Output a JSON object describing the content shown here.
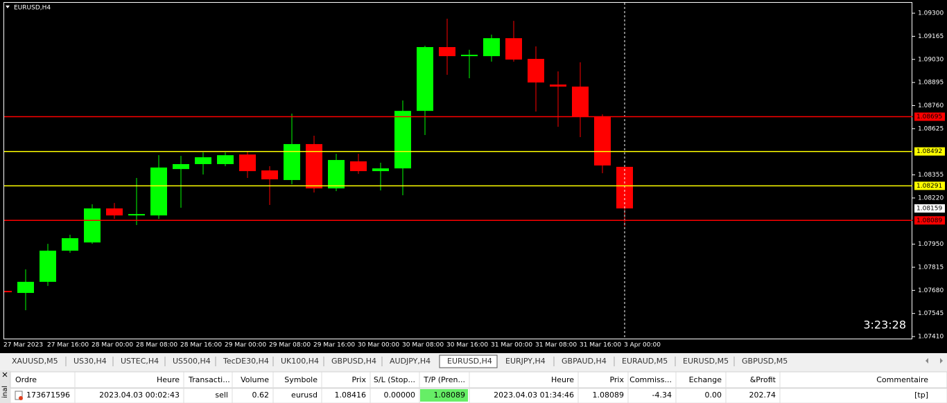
{
  "window_title": "EURUSD,H4",
  "chart_data": {
    "type": "candlestick",
    "categories": [
      "27 Mar 2023",
      null,
      "27 Mar 16:00",
      null,
      "28 Mar 00:00",
      null,
      "28 Mar 08:00",
      null,
      "28 Mar 16:00",
      null,
      "29 Mar 00:00",
      null,
      "29 Mar 08:00",
      null,
      "29 Mar 16:00",
      null,
      "30 Mar 00:00",
      null,
      "30 Mar 08:00",
      null,
      "30 Mar 16:00",
      null,
      "31 Mar 00:00",
      null,
      "31 Mar 08:00",
      null,
      "31 Mar 16:00",
      null,
      "3 Apr 00:00"
    ],
    "open": [
      1.07677,
      1.07665,
      1.0773,
      1.07912,
      1.0796,
      1.08159,
      1.08118,
      1.08118,
      1.08389,
      1.08418,
      1.08418,
      1.08474,
      1.08381,
      1.08325,
      1.08535,
      1.08276,
      1.08434,
      1.08377,
      1.08393,
      1.08729,
      1.09102,
      1.09049,
      1.09049,
      1.09154,
      1.09033,
      1.08883,
      1.08871,
      1.08697,
      1.08402
    ],
    "high": [
      1.07823,
      1.07803,
      1.07952,
      1.08005,
      1.08183,
      1.08191,
      1.08337,
      1.0847,
      1.08466,
      1.08487,
      1.08487,
      1.08495,
      1.08406,
      1.08713,
      1.08584,
      1.08478,
      1.08478,
      1.08426,
      1.0879,
      1.0911,
      1.09268,
      1.09086,
      1.09175,
      1.09255,
      1.09106,
      1.0896,
      1.09013,
      1.08709,
      1.0841
    ],
    "low": [
      1.07442,
      1.07564,
      1.07706,
      1.079,
      1.07952,
      1.08098,
      1.08062,
      1.08098,
      1.08163,
      1.08357,
      1.08406,
      1.08337,
      1.08179,
      1.083,
      1.08252,
      1.0826,
      1.08361,
      1.08264,
      1.08236,
      1.08588,
      1.0894,
      1.0892,
      1.09017,
      1.09017,
      1.08725,
      1.08636,
      1.08576,
      1.08365,
      1.08054
    ],
    "close": [
      1.07669,
      1.0773,
      1.07912,
      1.07985,
      1.08159,
      1.08118,
      1.08126,
      1.08398,
      1.08418,
      1.08458,
      1.0847,
      1.08377,
      1.08329,
      1.08535,
      1.08276,
      1.08442,
      1.08377,
      1.08393,
      1.08729,
      1.09102,
      1.09049,
      1.09057,
      1.09154,
      1.09029,
      1.08895,
      1.08871,
      1.08697,
      1.0841,
      1.08159
    ],
    "up_color": "#00ff00",
    "down_color": "#ff0000",
    "ylim": [
      1.07394,
      1.09365
    ],
    "yticks": [
      {
        "value": 1.093,
        "label": "1.09300"
      },
      {
        "value": 1.09165,
        "label": "1.09165"
      },
      {
        "value": 1.0903,
        "label": "1.09030"
      },
      {
        "value": 1.08895,
        "label": "1.08895"
      },
      {
        "value": 1.0876,
        "label": "1.08760"
      },
      {
        "value": 1.08625,
        "label": "1.08625"
      },
      {
        "value": 1.08355,
        "label": "1.08355"
      },
      {
        "value": 1.0822,
        "label": "1.08220"
      },
      {
        "value": 1.0795,
        "label": "1.07950"
      },
      {
        "value": 1.07815,
        "label": "1.07815"
      },
      {
        "value": 1.0768,
        "label": "1.07680"
      },
      {
        "value": 1.07545,
        "label": "1.07545"
      },
      {
        "value": 1.0741,
        "label": "1.07410"
      }
    ],
    "levels": [
      {
        "value": 1.08695,
        "label": "1.08695",
        "color": "#ff0000"
      },
      {
        "value": 1.08492,
        "label": "1.08492",
        "color": "#ffff00"
      },
      {
        "value": 1.08291,
        "label": "1.08291",
        "color": "#ffff00"
      },
      {
        "value": 1.08089,
        "label": "1.08089",
        "color": "#ff0000"
      }
    ],
    "current_price": {
      "value": 1.08159,
      "label": "1.08159"
    },
    "timer": "3:23:28"
  },
  "tabs": [
    "XAUUSD,M5",
    "US30,H4",
    "USTEC,H4",
    "US500,H4",
    "TecDE30,H4",
    "UK100,H4",
    "GBPUSD,H4",
    "AUDJPY,H4",
    "EURUSD,H4",
    "EURJPY,H4",
    "GBPAUD,H4",
    "EURAUD,M5",
    "EURUSD,M5",
    "GBPUSD,M5"
  ],
  "active_tab": 8,
  "terminal_label": "inal",
  "table": {
    "headers": [
      "Ordre",
      "Heure",
      "Transacti...",
      "Volume",
      "Symbole",
      "Prix",
      "S/L (Stop...",
      "T/P (Pren...",
      "Heure",
      "Prix",
      "Commiss...",
      "Echange",
      "&Profit",
      "Commentaire"
    ],
    "rows": [
      [
        "173671596",
        "2023.04.03 00:02:43",
        "sell",
        "0.62",
        "eurusd",
        "1.08416",
        "0.00000",
        "1.08089",
        "2023.04.03 01:34:46",
        "1.08089",
        "-4.34",
        "0.00",
        "202.74",
        "[tp]"
      ]
    ]
  }
}
